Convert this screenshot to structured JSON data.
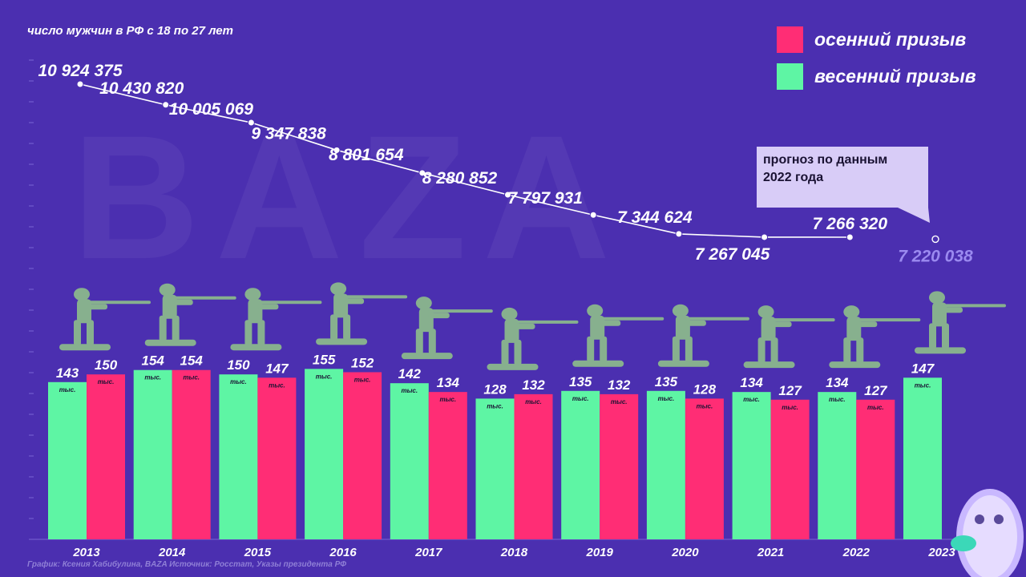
{
  "subtitle": "число мужчин в РФ с 18 по 27 лет",
  "watermark": "BAZA",
  "legend": [
    {
      "label": "осенний призыв",
      "color": "#ff2d75"
    },
    {
      "label": "весенний призыв",
      "color": "#5ef5a4"
    }
  ],
  "forecast_note": [
    "прогноз по данным",
    "2022 года"
  ],
  "footer": "График: Ксения Хабибулина, BAZA Источник: Росстат, Указы президента РФ",
  "unit_label": "тыс.",
  "colors": {
    "background": "#4b2fb0",
    "spring": "#5ef5a4",
    "autumn": "#ff2d75",
    "line": "#ffffff",
    "forecast": "#9b8af0",
    "soldier": "#87b08e"
  },
  "chart_data": {
    "type": "bar",
    "categories": [
      "2013",
      "2014",
      "2015",
      "2016",
      "2017",
      "2018",
      "2019",
      "2020",
      "2021",
      "2022",
      "2023"
    ],
    "series": [
      {
        "name": "весенний призыв",
        "values": [
          143,
          154,
          150,
          155,
          142,
          128,
          135,
          135,
          134,
          134,
          147
        ]
      },
      {
        "name": "осенний призыв",
        "values": [
          150,
          154,
          147,
          152,
          134,
          132,
          132,
          128,
          127,
          127,
          null
        ]
      }
    ],
    "line": {
      "values": [
        10924375,
        10430820,
        10005069,
        9347838,
        8801654,
        8280852,
        7797931,
        7344624,
        7267045,
        7266320
      ],
      "labels": [
        "10 924 375",
        "10 430 820",
        "10 005 069",
        "9 347 838",
        "8 801 654",
        "8 280 852",
        "7 797 931",
        "7 344 624",
        "7 267 045",
        "7 266 320"
      ],
      "forecast": {
        "value": 7220038,
        "label": "7 220 038"
      }
    }
  }
}
